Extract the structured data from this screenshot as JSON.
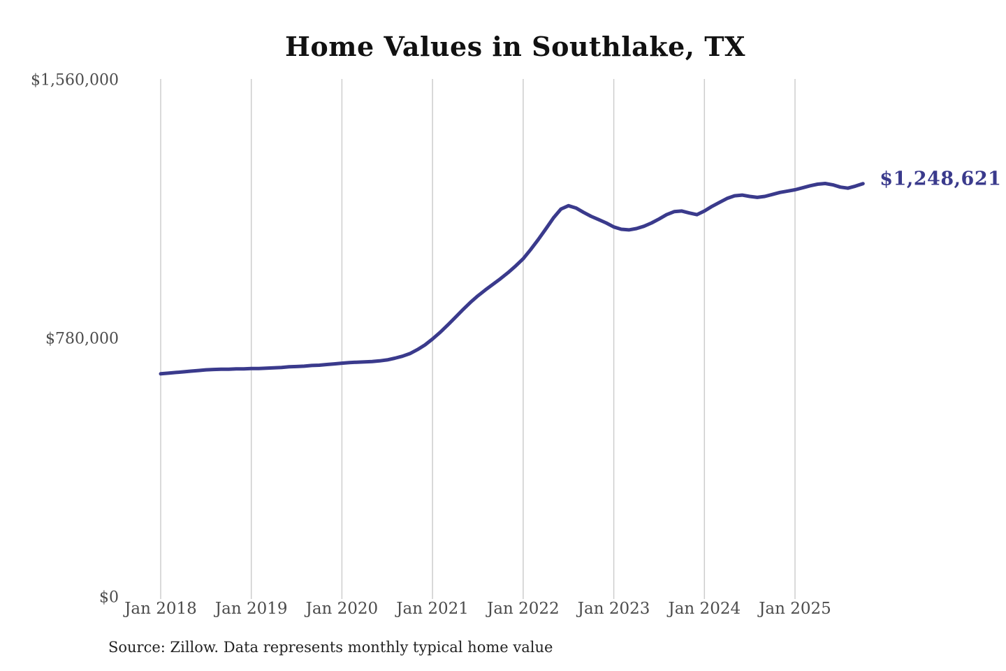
{
  "title": "Home Values in Southlake, TX",
  "source_note": "Source: Zillow. Data represents monthly typical home value",
  "colors": {
    "line": "#3a3a8c",
    "grid": "#cdcdcd",
    "axis_text": "#4c4c4c",
    "title_text": "#111111",
    "annotation": "#3a3a8c"
  },
  "chart_data": {
    "type": "line",
    "title": "Home Values in Southlake, TX",
    "xlabel": "",
    "ylabel": "",
    "ylim": [
      0,
      1560000
    ],
    "grid": "vertical-yearly-gridlines-only",
    "legend_position": "none",
    "frequency": "monthly",
    "x_start": "Jan 2018",
    "x_end": "Oct 2025",
    "x_tick_labels": [
      "Jan 2018",
      "Jan 2019",
      "Jan 2020",
      "Jan 2021",
      "Jan 2022",
      "Jan 2023",
      "Jan 2024",
      "Jan 2025"
    ],
    "y_ticks": [
      {
        "label": "$0",
        "value": 0
      },
      {
        "label": "$780,000",
        "value": 780000
      },
      {
        "label": "$1,560,000",
        "value": 1560000
      }
    ],
    "series_name": "Typical home value",
    "values": [
      675000,
      677000,
      679000,
      681000,
      683000,
      685000,
      687000,
      688000,
      689000,
      689000,
      690000,
      690000,
      691000,
      691000,
      692000,
      693000,
      694000,
      696000,
      697000,
      698000,
      700000,
      701000,
      703000,
      705000,
      707000,
      709000,
      710000,
      711000,
      712000,
      714000,
      717000,
      722000,
      728000,
      736000,
      748000,
      762000,
      780000,
      800000,
      822000,
      845000,
      868000,
      890000,
      910000,
      928000,
      945000,
      962000,
      980000,
      1000000,
      1022000,
      1050000,
      1080000,
      1112000,
      1145000,
      1172000,
      1182000,
      1175000,
      1162000,
      1150000,
      1140000,
      1130000,
      1118000,
      1111000,
      1109000,
      1113000,
      1120000,
      1130000,
      1142000,
      1155000,
      1164000,
      1166000,
      1160000,
      1155000,
      1166000,
      1180000,
      1192000,
      1204000,
      1212000,
      1214000,
      1210000,
      1207000,
      1210000,
      1216000,
      1222000,
      1226000,
      1230000,
      1236000,
      1242000,
      1247000,
      1249000,
      1245000,
      1238000,
      1235000,
      1241000,
      1248621
    ],
    "final_value": 1248621,
    "final_value_label": "$1,248,621"
  }
}
